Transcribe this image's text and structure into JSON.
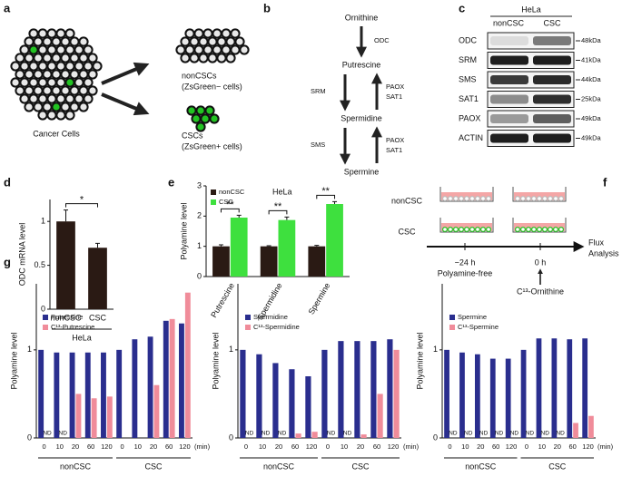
{
  "panel_labels": [
    "a",
    "b",
    "c",
    "d",
    "e",
    "f",
    "g"
  ],
  "schematic_a": {
    "cancer": "Cancer Cells",
    "noncsc": [
      "nonCSCs",
      "(ZsGreen− cells)"
    ],
    "csc": [
      "CSCs",
      "(ZsGreen+ cells)"
    ]
  },
  "pathway": {
    "nodes": [
      "Ornithine",
      "Putrescine",
      "Spermidine",
      "Spermine"
    ],
    "forward": [
      "ODC",
      "SRM",
      "SMS"
    ],
    "reverse": [
      [
        "PAOX",
        "SAT1"
      ],
      [
        "PAOX",
        "SAT1"
      ]
    ]
  },
  "western": {
    "cell_line": "HeLa",
    "lanes": [
      "nonCSC",
      "CSC"
    ],
    "rows": [
      {
        "protein": "ODC",
        "size": "48kDa"
      },
      {
        "protein": "SRM",
        "size": "41kDa"
      },
      {
        "protein": "SMS",
        "size": "44kDa"
      },
      {
        "protein": "SAT1",
        "size": "25kDa"
      },
      {
        "protein": "PAOX",
        "size": "49kDa"
      },
      {
        "protein": "ACTIN",
        "size": "49kDa"
      }
    ]
  },
  "flux": {
    "conditions": [
      "nonCSC",
      "CSC"
    ],
    "timepoints": [
      {
        "time": "−24 h",
        "label": "Polyamine-free"
      },
      {
        "time": "0 h",
        "label": "C¹³-Ornithine"
      }
    ],
    "endpoint": [
      "Flux",
      "Analysis"
    ]
  },
  "chart_data": [
    {
      "type": "bar",
      "ylabel": "ODC mRNA level",
      "categories": [
        "nonCSC",
        "CSC"
      ],
      "values": [
        1.0,
        0.7
      ],
      "errors": [
        0.13,
        0.05
      ],
      "color": "#2a1a14",
      "groups": [
        "HeLa"
      ],
      "significance": "*",
      "ylim": [
        0,
        1.25
      ],
      "yticks": [
        0,
        0.5,
        1
      ]
    },
    {
      "type": "bar",
      "ylabel": "Polyamine level",
      "annotation": "HeLa",
      "categories": [
        "Putrescine",
        "Spermidine",
        "Spermine"
      ],
      "series": [
        {
          "name": "nonCSC",
          "color": "#2a1a14",
          "values": [
            1.0,
            1.0,
            1.0
          ],
          "errors": [
            0.05,
            0.02,
            0.03
          ]
        },
        {
          "name": "CSC",
          "color": "#3ee03e",
          "values": [
            1.95,
            1.87,
            2.4
          ],
          "errors": [
            0.08,
            0.1,
            0.08
          ]
        }
      ],
      "significance": [
        "**",
        "**",
        "**"
      ],
      "ylim": [
        0,
        3
      ],
      "yticks": [
        0,
        1,
        2,
        3
      ]
    },
    {
      "type": "bar",
      "ylabel": "Polyamine level",
      "xlabel": "(min)",
      "categories": [
        "0",
        "10",
        "20",
        "60",
        "120",
        "0",
        "10",
        "20",
        "60",
        "120"
      ],
      "groups": [
        "nonCSC",
        "CSC"
      ],
      "series": [
        {
          "name": "Putrescine",
          "color": "#2a2e8e",
          "values": [
            1.0,
            0.97,
            0.97,
            0.97,
            0.97,
            1.0,
            1.12,
            1.15,
            1.33,
            1.3
          ]
        },
        {
          "name": "C¹³-Putrescine",
          "color": "#f08c9a",
          "values": [
            null,
            null,
            0.5,
            0.45,
            0.47,
            null,
            null,
            0.6,
            1.35,
            1.65
          ],
          "value_labels": [
            "ND",
            "ND",
            null,
            null,
            null,
            null,
            null,
            null,
            null,
            null
          ]
        }
      ],
      "ylim": [
        0,
        1.75
      ],
      "yticks": [
        0,
        1
      ]
    },
    {
      "type": "bar",
      "ylabel": "Polyamine level",
      "xlabel": "(min)",
      "categories": [
        "0",
        "10",
        "20",
        "60",
        "120",
        "0",
        "10",
        "20",
        "60",
        "120"
      ],
      "groups": [
        "nonCSC",
        "CSC"
      ],
      "series": [
        {
          "name": "Spermidine",
          "color": "#2a2e8e",
          "values": [
            1.0,
            0.95,
            0.85,
            0.78,
            0.7,
            1.0,
            1.1,
            1.1,
            1.1,
            1.12
          ]
        },
        {
          "name": "C¹³-Spermidine",
          "color": "#f08c9a",
          "values": [
            null,
            null,
            null,
            0.05,
            0.07,
            null,
            null,
            0.04,
            0.5,
            1.0
          ],
          "value_labels": [
            "ND",
            "ND",
            "ND",
            null,
            null,
            "ND",
            "ND",
            null,
            null,
            null
          ]
        }
      ],
      "ylim": [
        0,
        1.75
      ],
      "yticks": [
        0,
        1
      ]
    },
    {
      "type": "bar",
      "ylabel": "Polyamine level",
      "xlabel": "(min)",
      "categories": [
        "0",
        "10",
        "20",
        "60",
        "120",
        "0",
        "10",
        "20",
        "60",
        "120"
      ],
      "groups": [
        "nonCSC",
        "CSC"
      ],
      "series": [
        {
          "name": "Spermine",
          "color": "#2a2e8e",
          "values": [
            1.0,
            0.97,
            0.95,
            0.9,
            0.9,
            1.0,
            1.13,
            1.13,
            1.12,
            1.13
          ]
        },
        {
          "name": "C¹³-Spermine",
          "color": "#f08c9a",
          "values": [
            null,
            null,
            null,
            null,
            null,
            null,
            null,
            null,
            0.17,
            0.25
          ],
          "value_labels": [
            "ND",
            "ND",
            "ND",
            "ND",
            "ND",
            "ND",
            "ND",
            "ND",
            null,
            null
          ]
        }
      ],
      "ylim": [
        0,
        1.75
      ],
      "yticks": [
        0,
        1
      ]
    }
  ]
}
